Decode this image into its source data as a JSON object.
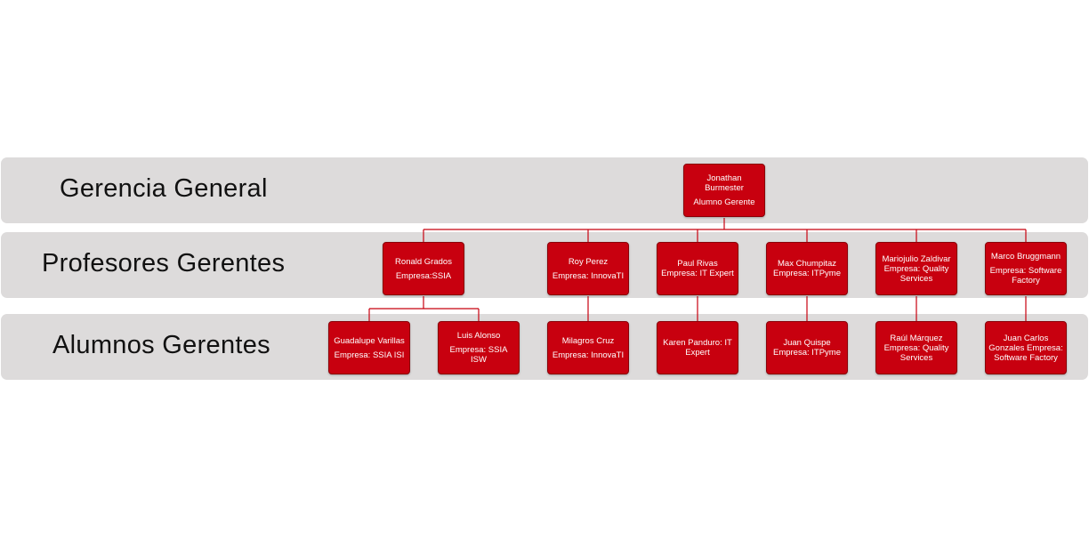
{
  "bands": [
    {
      "label": "Gerencia General"
    },
    {
      "label": "Profesores Gerentes"
    },
    {
      "label": "Alumnos Gerentes"
    }
  ],
  "nodes": {
    "root": {
      "name": "Jonathan Burmester",
      "role": "Alumno Gerente"
    },
    "ronald": {
      "name": "Ronald Grados",
      "role": "Empresa:SSIA"
    },
    "roy": {
      "name": "Roy Perez",
      "role": "Empresa: InnovaTI"
    },
    "paul": {
      "name": "Paul Rivas",
      "role": "Empresa: IT Expert"
    },
    "max": {
      "name": "Max Chumpitaz",
      "role": "Empresa: ITPyme"
    },
    "mariojulio": {
      "name": "Mariojulio Zaldivar",
      "role": "Empresa: Quality Services"
    },
    "marco": {
      "name": "Marco Bruggmann",
      "role": "Empresa: Software Factory"
    },
    "guadalupe": {
      "name": "Guadalupe Varillas",
      "role": "Empresa:  SSIA ISI"
    },
    "luis": {
      "name": "Luis Alonso",
      "role": "Empresa: SSIA ISW"
    },
    "milagros": {
      "name": "Milagros Cruz",
      "role": "Empresa: InnovaTI"
    },
    "karen": {
      "name": "Karen Panduro: IT Expert",
      "role": ""
    },
    "juanq": {
      "name": "Juan Quispe",
      "role": "Empresa: ITPyme"
    },
    "raul": {
      "name": "Raúl Márquez",
      "role": "Empresa: Quality Services"
    },
    "juanc": {
      "name": "Juan Carlos Gonzales Empresa: Software Factory",
      "role": ""
    }
  },
  "colors": {
    "node_fill": "#c8000f",
    "band_fill": "#dddbdb",
    "connector": "#c8000f"
  }
}
